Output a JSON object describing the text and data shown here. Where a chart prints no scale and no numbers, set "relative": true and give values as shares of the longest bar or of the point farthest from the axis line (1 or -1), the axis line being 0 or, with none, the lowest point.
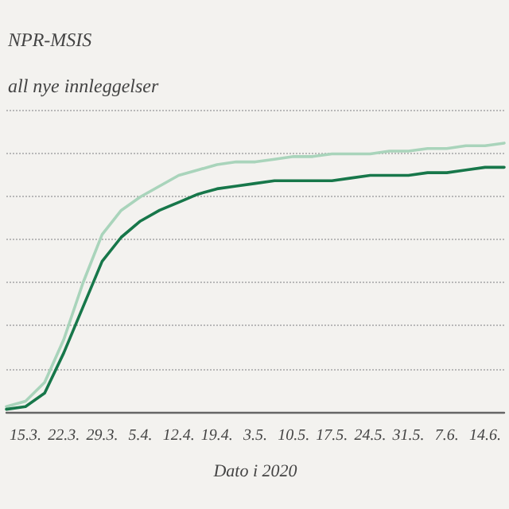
{
  "chart_data": {
    "type": "line",
    "title": "NPR-MSIS",
    "ylabel": "all nye innleggelser",
    "xlabel": "Dato i 2020",
    "relative": true,
    "grid": "y",
    "categories": [
      null,
      "15.3.",
      null,
      "22.3.",
      null,
      "29.3.",
      null,
      "5.4.",
      null,
      "12.4.",
      null,
      "19.4.",
      null,
      "3.5.",
      null,
      "10.5.",
      null,
      "17.5.",
      null,
      "24.5.",
      null,
      "31.5.",
      null,
      "7.6.",
      null,
      "14.6.",
      null
    ],
    "series": [
      {
        "color": "#a9d4bb",
        "values": [
          0.02,
          0.04,
          0.11,
          0.27,
          0.48,
          0.66,
          0.75,
          0.8,
          0.84,
          0.88,
          0.9,
          0.92,
          0.93,
          0.93,
          0.94,
          0.95,
          0.95,
          0.96,
          0.96,
          0.96,
          0.97,
          0.97,
          0.98,
          0.98,
          0.99,
          0.99,
          1
        ]
      },
      {
        "color": "#17774a",
        "values": [
          0.01,
          0.02,
          0.07,
          0.22,
          0.39,
          0.56,
          0.65,
          0.71,
          0.75,
          0.78,
          0.81,
          0.83,
          0.84,
          0.85,
          0.86,
          0.86,
          0.86,
          0.86,
          0.87,
          0.88,
          0.88,
          0.88,
          0.89,
          0.89,
          0.9,
          0.91,
          0.91
        ]
      }
    ]
  }
}
